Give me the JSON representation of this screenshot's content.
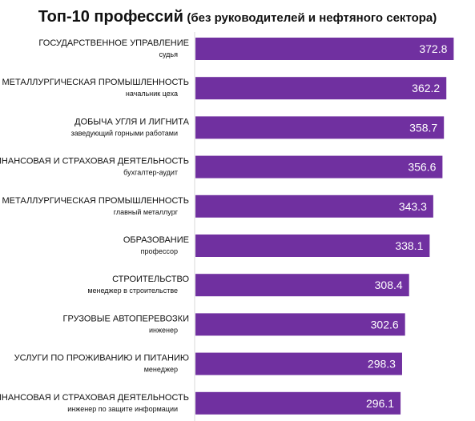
{
  "chart_data": {
    "type": "bar",
    "orientation": "horizontal",
    "title": "Топ-10 профессий",
    "subtitle": "(без руководителей и нефтяного сектора)",
    "categories": [
      {
        "industry": "ГОСУДАРСТВЕННОЕ УПРАВЛЕНИЕ",
        "profession": "судья"
      },
      {
        "industry": "МЕТАЛЛУРГИЧЕСКАЯ ПРОМЫШЛЕННОСТЬ",
        "profession": "начальник цеха"
      },
      {
        "industry": "ДОБЫЧА УГЛЯ И ЛИГНИТА",
        "profession": "заведующий горными работами"
      },
      {
        "industry": "ФИНАНСОВАЯ И СТРАХОВАЯ ДЕЯТЕЛЬНОСТЬ",
        "profession": "бухгалтер-аудит"
      },
      {
        "industry": "МЕТАЛЛУРГИЧЕСКАЯ ПРОМЫШЛЕННОСТЬ",
        "profession": "главный металлург"
      },
      {
        "industry": "ОБРАЗОВАНИЕ",
        "profession": "профессор"
      },
      {
        "industry": "СТРОИТЕЛЬСТВО",
        "profession": "менеджер в строительстве"
      },
      {
        "industry": "ГРУЗОВЫЕ АВТОПЕРЕВОЗКИ",
        "profession": "инженер"
      },
      {
        "industry": "УСЛУГИ ПО ПРОЖИВАНИЮ И ПИТАНИЮ",
        "profession": "менеджер"
      },
      {
        "industry": "ФИНАНСОВАЯ И СТРАХОВАЯ ДЕЯТЕЛЬНОСТЬ",
        "profession": "инженер по защите информации"
      }
    ],
    "values": [
      372.8,
      362.2,
      358.7,
      356.6,
      343.3,
      338.1,
      308.4,
      302.6,
      298.3,
      296.1
    ],
    "value_labels": [
      "372.8",
      "362.2",
      "358.7",
      "356.6",
      "343.3",
      "338.1",
      "308.4",
      "302.6",
      "298.3",
      "296.1"
    ],
    "bar_color": "#7030A0",
    "xlim": [
      0,
      392
    ],
    "grid": false,
    "legend": "none"
  }
}
